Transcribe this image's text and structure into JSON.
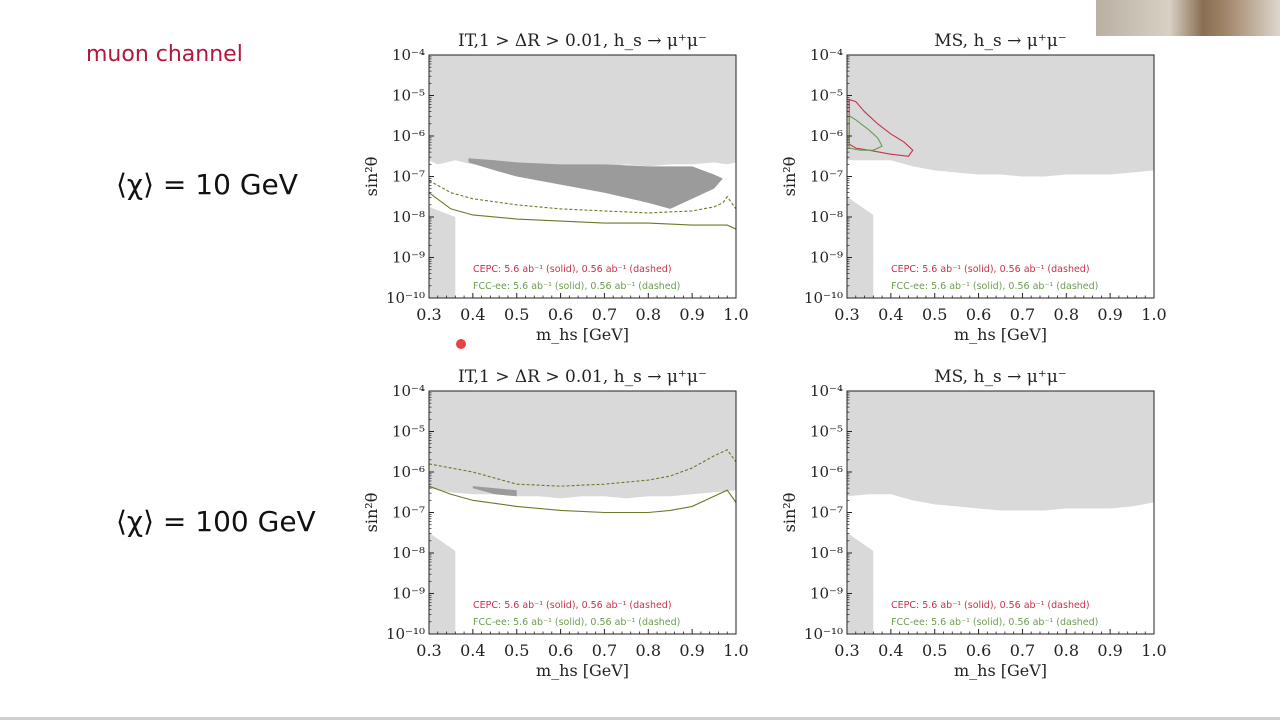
{
  "slide": {
    "title": "muon channel",
    "row_labels": [
      "⟨χ⟩ = 10 GeV",
      "⟨χ⟩ = 100 GeV"
    ]
  },
  "legend": {
    "cepc": "CEPC: 5.6 ab⁻¹ (solid), 0.56 ab⁻¹ (dashed)",
    "fcc": "FCC-ee: 5.6 ab⁻¹ (solid), 0.56 ab⁻¹ (dashed)"
  },
  "colors": {
    "cepc": "#c8324a",
    "fcc": "#6b9e4e",
    "fcc_dark": "#6b7a2a",
    "excluded": "#d9d9d9",
    "excluded_dark": "#9b9b9b"
  },
  "chart_data": [
    {
      "type": "area",
      "title": "IT,1 > ΔR > 0.01, h_s → μ⁺μ⁻",
      "xlabel": "m_hs [GeV]",
      "ylabel": "sin²θ",
      "xlim": [
        0.3,
        1.0
      ],
      "ylim_log10": [
        -10,
        -4
      ],
      "yscale": "log",
      "x_ticks": [
        "0.3",
        "0.4",
        "0.5",
        "0.6",
        "0.7",
        "0.8",
        "0.9",
        "1.0"
      ],
      "y_ticks": [
        "10⁻¹⁰",
        "10⁻⁹",
        "10⁻⁸",
        "10⁻⁷",
        "10⁻⁶",
        "10⁻⁵",
        "10⁻⁴"
      ],
      "excluded_top_log10": {
        "x": [
          0.3,
          0.32,
          0.34,
          0.36,
          0.38,
          0.4,
          0.45,
          0.5,
          0.55,
          0.6,
          0.65,
          0.7,
          0.75,
          0.8,
          0.85,
          0.9,
          0.95,
          0.98,
          1.0
        ],
        "y": [
          -6.6,
          -6.7,
          -6.65,
          -6.6,
          -6.65,
          -6.7,
          -6.7,
          -6.75,
          -6.7,
          -6.75,
          -6.7,
          -6.75,
          -6.7,
          -6.75,
          -6.7,
          -6.7,
          -6.65,
          -6.7,
          -6.65
        ]
      },
      "excluded_dark_log10": {
        "x": [
          0.39,
          0.45,
          0.5,
          0.6,
          0.7,
          0.8,
          0.86,
          0.9,
          0.95,
          0.97,
          0.95,
          0.9,
          0.85,
          0.8,
          0.7,
          0.6,
          0.5,
          0.45,
          0.39
        ],
        "y": [
          -6.55,
          -6.6,
          -6.65,
          -6.7,
          -6.7,
          -6.75,
          -6.75,
          -6.75,
          -6.95,
          -7.05,
          -7.3,
          -7.55,
          -7.8,
          -7.65,
          -7.4,
          -7.2,
          -7.0,
          -6.85,
          -6.65
        ]
      },
      "excluded_bottom_log10": {
        "x": [
          0.3,
          0.36,
          0.36,
          0.3
        ],
        "y": [
          -10,
          -10,
          -8.0,
          -7.75
        ]
      },
      "series": [
        {
          "style": "dashed",
          "color_key": "fcc_dark",
          "x": [
            0.3,
            0.35,
            0.4,
            0.5,
            0.6,
            0.7,
            0.8,
            0.9,
            0.95,
            0.97,
            0.98,
            1.0
          ],
          "y_log10": [
            -7.1,
            -7.4,
            -7.55,
            -7.7,
            -7.8,
            -7.85,
            -7.9,
            -7.85,
            -7.75,
            -7.65,
            -7.5,
            -7.8
          ]
        },
        {
          "style": "solid",
          "color_key": "fcc_dark",
          "x": [
            0.3,
            0.35,
            0.4,
            0.5,
            0.6,
            0.7,
            0.8,
            0.9,
            0.95,
            0.98,
            1.0
          ],
          "y_log10": [
            -7.4,
            -7.8,
            -7.95,
            -8.05,
            -8.1,
            -8.15,
            -8.15,
            -8.2,
            -8.2,
            -8.2,
            -8.3
          ]
        }
      ]
    },
    {
      "type": "area",
      "title": "MS, h_s → μ⁺μ⁻",
      "xlabel": "m_hs [GeV]",
      "ylabel": "sin²θ",
      "xlim": [
        0.3,
        1.0
      ],
      "ylim_log10": [
        -10,
        -4
      ],
      "yscale": "log",
      "x_ticks": [
        "0.3",
        "0.4",
        "0.5",
        "0.6",
        "0.7",
        "0.8",
        "0.9",
        "1.0"
      ],
      "y_ticks": [
        "10⁻¹⁰",
        "10⁻⁹",
        "10⁻⁸",
        "10⁻⁷",
        "10⁻⁶",
        "10⁻⁵",
        "10⁻⁴"
      ],
      "excluded_top_log10": {
        "x": [
          0.3,
          0.4,
          0.45,
          0.5,
          0.55,
          0.6,
          0.65,
          0.7,
          0.75,
          0.8,
          0.85,
          0.9,
          0.95,
          1.0
        ],
        "y": [
          -6.6,
          -6.6,
          -6.75,
          -6.85,
          -6.9,
          -6.95,
          -6.95,
          -7.0,
          -7.0,
          -6.95,
          -6.95,
          -6.95,
          -6.9,
          -6.85
        ]
      },
      "excluded_dark_log10": {
        "x": [],
        "y": []
      },
      "excluded_bottom_log10": {
        "x": [
          0.3,
          0.36,
          0.36,
          0.3
        ],
        "y": [
          -10,
          -10,
          -7.95,
          -7.5
        ]
      },
      "series": [
        {
          "style": "solid",
          "color_key": "cepc",
          "x": [
            0.305,
            0.32,
            0.34,
            0.37,
            0.4,
            0.43,
            0.45,
            0.44,
            0.4,
            0.35,
            0.32,
            0.305
          ],
          "y_log10": [
            -5.1,
            -5.15,
            -5.4,
            -5.7,
            -5.95,
            -6.15,
            -6.35,
            -6.5,
            -6.45,
            -6.35,
            -6.3,
            -6.2
          ]
        },
        {
          "style": "solid",
          "color_key": "fcc",
          "x": [
            0.305,
            0.32,
            0.35,
            0.37,
            0.38,
            0.36,
            0.33,
            0.305
          ],
          "y_log10": [
            -5.5,
            -5.6,
            -5.85,
            -6.05,
            -6.25,
            -6.35,
            -6.35,
            -6.3
          ]
        }
      ]
    },
    {
      "type": "area",
      "title": "IT,1 > ΔR > 0.01, h_s → μ⁺μ⁻",
      "xlabel": "m_hs [GeV]",
      "ylabel": "sin²θ",
      "xlim": [
        0.3,
        1.0
      ],
      "ylim_log10": [
        -10,
        -4
      ],
      "yscale": "log",
      "x_ticks": [
        "0.3",
        "0.4",
        "0.5",
        "0.6",
        "0.7",
        "0.8",
        "0.9",
        "1.0"
      ],
      "y_ticks": [
        "10⁻¹⁰",
        "10⁻⁹",
        "10⁻⁸",
        "10⁻⁷",
        "10⁻⁶",
        "10⁻⁵",
        "10⁻⁴"
      ],
      "excluded_top_log10": {
        "x": [
          0.3,
          0.35,
          0.4,
          0.45,
          0.5,
          0.55,
          0.6,
          0.65,
          0.7,
          0.75,
          0.8,
          0.85,
          0.9,
          0.95,
          1.0
        ],
        "y": [
          -6.4,
          -6.5,
          -6.55,
          -6.55,
          -6.6,
          -6.6,
          -6.65,
          -6.6,
          -6.6,
          -6.65,
          -6.6,
          -6.6,
          -6.55,
          -6.5,
          -6.45
        ]
      },
      "excluded_dark_log10": {
        "x": [
          0.4,
          0.5,
          0.5,
          0.45,
          0.4
        ],
        "y": [
          -6.35,
          -6.45,
          -6.6,
          -6.55,
          -6.4
        ]
      },
      "excluded_bottom_log10": {
        "x": [
          0.3,
          0.36,
          0.36,
          0.3
        ],
        "y": [
          -10,
          -10,
          -7.95,
          -7.5
        ]
      },
      "series": [
        {
          "style": "dashed",
          "color_key": "fcc_dark",
          "x": [
            0.3,
            0.35,
            0.4,
            0.5,
            0.6,
            0.7,
            0.8,
            0.85,
            0.9,
            0.95,
            0.98,
            1.0
          ],
          "y_log10": [
            -5.8,
            -5.9,
            -6.0,
            -6.3,
            -6.35,
            -6.3,
            -6.2,
            -6.1,
            -5.9,
            -5.6,
            -5.45,
            -5.75
          ]
        },
        {
          "style": "solid",
          "color_key": "fcc_dark",
          "x": [
            0.3,
            0.35,
            0.4,
            0.5,
            0.6,
            0.7,
            0.8,
            0.85,
            0.9,
            0.95,
            0.98,
            1.0
          ],
          "y_log10": [
            -6.35,
            -6.55,
            -6.7,
            -6.85,
            -6.95,
            -7.0,
            -7.0,
            -6.95,
            -6.85,
            -6.6,
            -6.45,
            -6.75
          ]
        }
      ]
    },
    {
      "type": "area",
      "title": "MS, h_s → μ⁺μ⁻",
      "xlabel": "m_hs [GeV]",
      "ylabel": "sin²θ",
      "xlim": [
        0.3,
        1.0
      ],
      "ylim_log10": [
        -10,
        -4
      ],
      "yscale": "log",
      "x_ticks": [
        "0.3",
        "0.4",
        "0.5",
        "0.6",
        "0.7",
        "0.8",
        "0.9",
        "1.0"
      ],
      "y_ticks": [
        "10⁻¹⁰",
        "10⁻⁹",
        "10⁻⁸",
        "10⁻⁷",
        "10⁻⁶",
        "10⁻⁵",
        "10⁻⁴"
      ],
      "excluded_top_log10": {
        "x": [
          0.3,
          0.35,
          0.4,
          0.45,
          0.5,
          0.55,
          0.6,
          0.65,
          0.7,
          0.75,
          0.8,
          0.85,
          0.9,
          0.95,
          1.0
        ],
        "y": [
          -6.6,
          -6.55,
          -6.55,
          -6.7,
          -6.8,
          -6.85,
          -6.9,
          -6.95,
          -6.95,
          -6.95,
          -6.9,
          -6.9,
          -6.9,
          -6.85,
          -6.75
        ]
      },
      "excluded_dark_log10": {
        "x": [],
        "y": []
      },
      "excluded_bottom_log10": {
        "x": [
          0.3,
          0.36,
          0.36,
          0.3
        ],
        "y": [
          -10,
          -10,
          -7.95,
          -7.5
        ]
      },
      "series": []
    }
  ]
}
